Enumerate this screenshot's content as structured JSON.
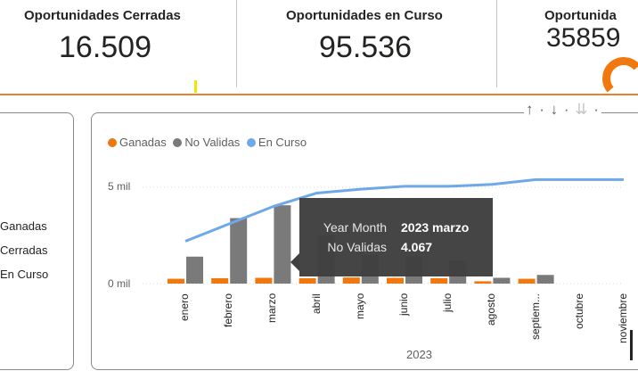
{
  "kpis": [
    {
      "title": "Oportunidades Cerradas",
      "value": "16.509"
    },
    {
      "title": "Oportunidades en Curso",
      "value": "95.536"
    },
    {
      "title": "Oportunida",
      "value": "35859"
    }
  ],
  "side_legend": [
    "Ganadas",
    "Cerradas",
    "En Curso"
  ],
  "toolbar": {
    "up": "↑",
    "down": "↓",
    "drill_all": "⇊",
    "sep": "·"
  },
  "chart_data": {
    "type": "bar",
    "legend": [
      {
        "name": "Ganadas",
        "color": "#f0780e"
      },
      {
        "name": "No Validas",
        "color": "#7a7a7a"
      },
      {
        "name": "En Curso",
        "color": "#6fa8e8"
      }
    ],
    "categories": [
      "enero",
      "febrero",
      "marzo",
      "abril",
      "mayo",
      "junio",
      "julio",
      "agosto",
      "septiem...",
      "octubre",
      "noviembre"
    ],
    "series": [
      {
        "name": "Ganadas",
        "values": [
          250,
          280,
          300,
          280,
          320,
          300,
          280,
          120,
          250,
          null,
          null
        ]
      },
      {
        "name": "No Validas",
        "values": [
          1400,
          3400,
          4067,
          2500,
          1500,
          1400,
          1200,
          300,
          450,
          null,
          null
        ]
      },
      {
        "name": "En Curso",
        "values": [
          2200,
          3100,
          4000,
          4700,
          4900,
          5050,
          5050,
          5150,
          5400,
          5400,
          5400
        ]
      }
    ],
    "y_ticks": [
      "0 mil",
      "5 mil"
    ],
    "ylim": [
      0,
      5700
    ],
    "x_group_label": "2023",
    "gridlines": true,
    "legend_position": "top-left"
  },
  "tooltip": {
    "row1_label": "Year Month",
    "row1_value": "2023 marzo",
    "row2_label": "No Validas",
    "row2_value": "4.067"
  }
}
